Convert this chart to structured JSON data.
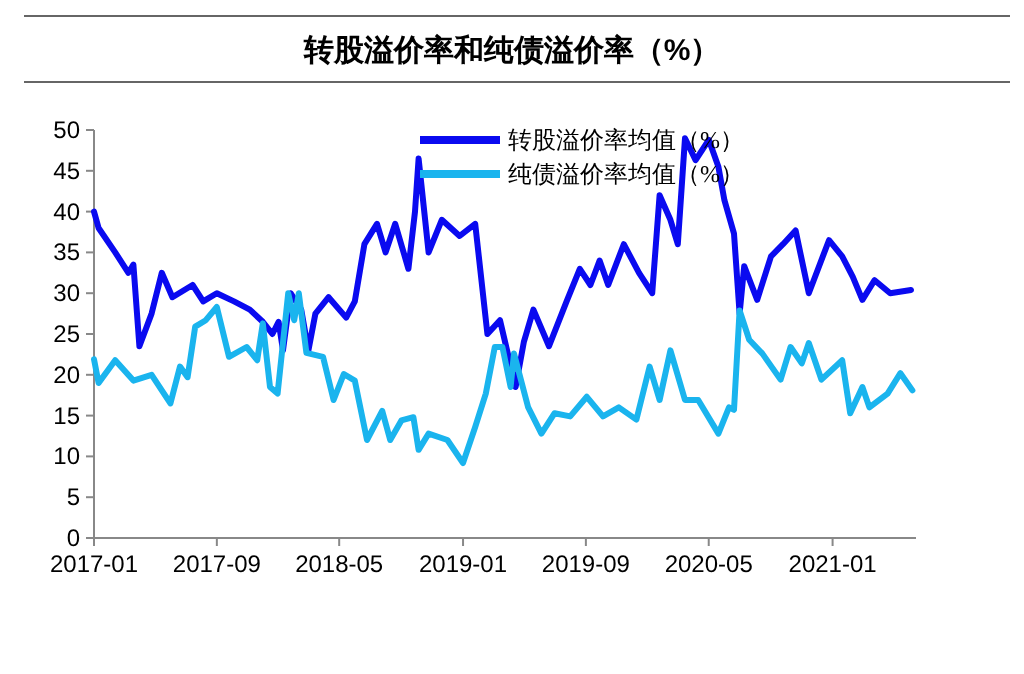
{
  "chart_data": {
    "type": "line",
    "title": "转股溢价率和纯债溢价率（%）",
    "legend": "top",
    "line_style": "solid",
    "marker": "none",
    "grid": false,
    "xlim": [
      "2017-01-01",
      "2021-06-15"
    ],
    "xticks": [
      {
        "value": "2017-01-01",
        "label": "2017-01"
      },
      {
        "value": "2017-09-01",
        "label": "2017-09"
      },
      {
        "value": "2018-05-01",
        "label": "2018-05"
      },
      {
        "value": "2019-01-01",
        "label": "2019-01"
      },
      {
        "value": "2019-09-01",
        "label": "2019-09"
      },
      {
        "value": "2020-05-01",
        "label": "2020-05"
      },
      {
        "value": "2021-01-01",
        "label": "2021-01"
      }
    ],
    "ylim": [
      0,
      50
    ],
    "yticks": [
      0,
      5,
      10,
      15,
      20,
      25,
      30,
      35,
      40,
      45,
      50
    ],
    "series": [
      {
        "name": "转股溢价率均值（%）",
        "color": "#0a0af0",
        "x": [
          "2017-01-01",
          "2017-01-10",
          "2017-02-12",
          "2017-03-10",
          "2017-03-20",
          "2017-04-01",
          "2017-04-25",
          "2017-05-15",
          "2017-06-05",
          "2017-07-15",
          "2017-08-05",
          "2017-09-01",
          "2017-10-05",
          "2017-11-05",
          "2017-12-01",
          "2017-12-20",
          "2018-01-01",
          "2018-01-10",
          "2018-01-25",
          "2018-02-15",
          "2018-03-01",
          "2018-03-15",
          "2018-04-10",
          "2018-05-15",
          "2018-06-01",
          "2018-06-20",
          "2018-07-15",
          "2018-08-01",
          "2018-08-20",
          "2018-09-15",
          "2018-09-28",
          "2018-10-05",
          "2018-10-25",
          "2018-11-20",
          "2018-12-25",
          "2019-01-25",
          "2019-02-18",
          "2019-03-15",
          "2019-04-15",
          "2019-05-01",
          "2019-05-20",
          "2019-06-20",
          "2019-07-25",
          "2019-08-20",
          "2019-09-10",
          "2019-09-28",
          "2019-10-15",
          "2019-11-15",
          "2019-12-15",
          "2020-01-10",
          "2020-01-25",
          "2020-02-15",
          "2020-03-01",
          "2020-03-15",
          "2020-04-05",
          "2020-05-01",
          "2020-05-20",
          "2020-06-01",
          "2020-06-20",
          "2020-07-01",
          "2020-07-10",
          "2020-08-05",
          "2020-09-01",
          "2020-09-25",
          "2020-10-20",
          "2020-11-15",
          "2020-12-25",
          "2021-01-20",
          "2021-02-10",
          "2021-03-01",
          "2021-03-25",
          "2021-04-25",
          "2021-06-05"
        ],
        "values": [
          40,
          38,
          35,
          32.5,
          33.5,
          23.5,
          27.5,
          32.5,
          29.5,
          31,
          29,
          30,
          29,
          28,
          26.5,
          25,
          26.5,
          23,
          30,
          28,
          23,
          27.5,
          29.5,
          27,
          29,
          36,
          38.5,
          35,
          38.5,
          33,
          40,
          46.5,
          35,
          39,
          37,
          38.5,
          25,
          26.7,
          18.5,
          24,
          28,
          23.5,
          29,
          33,
          31,
          34,
          31,
          36,
          32.5,
          30,
          42,
          39,
          36,
          49,
          46.3,
          48.8,
          45.5,
          41.4,
          37.3,
          27.5,
          33.3,
          29.2,
          34.5,
          36,
          37.7,
          30,
          36.5,
          34.5,
          32,
          29.2,
          31.6,
          30,
          30.4
        ]
      },
      {
        "name": "纯债溢价率均值（%）",
        "color": "#1ab4ee",
        "x": [
          "2017-01-01",
          "2017-01-10",
          "2017-02-12",
          "2017-03-20",
          "2017-04-25",
          "2017-06-01",
          "2017-06-20",
          "2017-07-05",
          "2017-07-20",
          "2017-08-10",
          "2017-09-01",
          "2017-09-25",
          "2017-10-30",
          "2017-11-20",
          "2017-12-01",
          "2017-12-15",
          "2017-12-30",
          "2018-01-20",
          "2018-02-01",
          "2018-02-10",
          "2018-02-25",
          "2018-03-30",
          "2018-04-20",
          "2018-05-10",
          "2018-06-01",
          "2018-06-25",
          "2018-07-25",
          "2018-08-10",
          "2018-09-01",
          "2018-09-25",
          "2018-10-05",
          "2018-10-25",
          "2018-12-01",
          "2019-01-01",
          "2019-01-25",
          "2019-02-15",
          "2019-03-05",
          "2019-03-20",
          "2019-04-05",
          "2019-04-12",
          "2019-05-10",
          "2019-06-05",
          "2019-07-01",
          "2019-08-01",
          "2019-09-03",
          "2019-10-05",
          "2019-11-05",
          "2019-12-10",
          "2020-01-05",
          "2020-01-25",
          "2020-02-15",
          "2020-03-15",
          "2020-04-10",
          "2020-05-20",
          "2020-06-10",
          "2020-06-20",
          "2020-07-01",
          "2020-07-20",
          "2020-08-15",
          "2020-09-20",
          "2020-10-10",
          "2020-11-01",
          "2020-11-15",
          "2020-12-10",
          "2021-01-20",
          "2021-02-05",
          "2021-03-01",
          "2021-03-15",
          "2021-04-20",
          "2021-05-15",
          "2021-06-08"
        ],
        "values": [
          21.9,
          19,
          21.8,
          19.3,
          20,
          16.5,
          21,
          19.7,
          25.9,
          26.7,
          28.3,
          22.2,
          23.4,
          21.8,
          26.3,
          18.5,
          17.7,
          30,
          26.7,
          30,
          22.7,
          22.2,
          16.9,
          20.1,
          19.3,
          12,
          15.6,
          12,
          14.4,
          14.8,
          10.8,
          12.8,
          12,
          9.2,
          13.6,
          17.7,
          23.4,
          23.4,
          18.5,
          22.6,
          16,
          12.8,
          15.3,
          14.9,
          17.3,
          14.9,
          16,
          14.5,
          21,
          16.9,
          23,
          16.9,
          16.9,
          12.8,
          16,
          15.7,
          27.9,
          24.3,
          22.6,
          19.4,
          23.4,
          21.4,
          23.9,
          19.4,
          21.8,
          15.3,
          18.5,
          16,
          17.7,
          20.2,
          18.1
        ]
      }
    ]
  }
}
